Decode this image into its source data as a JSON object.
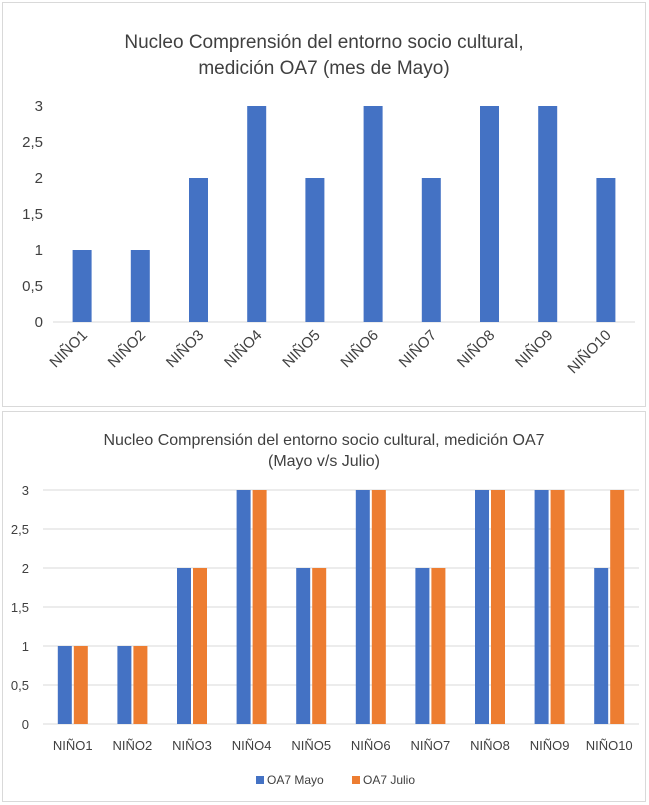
{
  "chart_data": [
    {
      "type": "bar",
      "title": [
        "Nucleo Comprensión del entorno socio cultural,",
        "medición OA7 (mes de Mayo)"
      ],
      "categories": [
        "NIÑO1",
        "NIÑO2",
        "NIÑO3",
        "NIÑO4",
        "NIÑO5",
        "NIÑO6",
        "NIÑO7",
        "NIÑO8",
        "NIÑO9",
        "NIÑO10"
      ],
      "series": [
        {
          "values": [
            1,
            1,
            2,
            3,
            2,
            3,
            2,
            3,
            3,
            2
          ],
          "color": "#4472c4"
        }
      ],
      "yticks": [
        "0",
        "0,5",
        "1",
        "1,5",
        "2",
        "2,5",
        "3"
      ],
      "ylim": [
        0,
        3
      ],
      "grid": false,
      "legend": "none"
    },
    {
      "type": "bar",
      "title": [
        "Nucleo Comprensión del entorno socio cultural, medición OA7",
        "(Mayo v/s Julio)"
      ],
      "categories": [
        "NIÑO1",
        "NIÑO2",
        "NIÑO3",
        "NIÑO4",
        "NIÑO5",
        "NIÑO6",
        "NIÑO7",
        "NIÑO8",
        "NIÑO9",
        "NIÑO10"
      ],
      "series": [
        {
          "name": "OA7 Mayo",
          "values": [
            1,
            1,
            2,
            3,
            2,
            3,
            2,
            3,
            3,
            2
          ],
          "color": "#4472c4"
        },
        {
          "name": "OA7 Julio",
          "values": [
            1,
            1,
            2,
            3,
            2,
            3,
            2,
            3,
            3,
            3
          ],
          "color": "#ed7d31"
        }
      ],
      "yticks": [
        "0",
        "0,5",
        "1",
        "1,5",
        "2",
        "2,5",
        "3"
      ],
      "ylim": [
        0,
        3
      ],
      "grid": true,
      "legend": "bottom"
    }
  ]
}
